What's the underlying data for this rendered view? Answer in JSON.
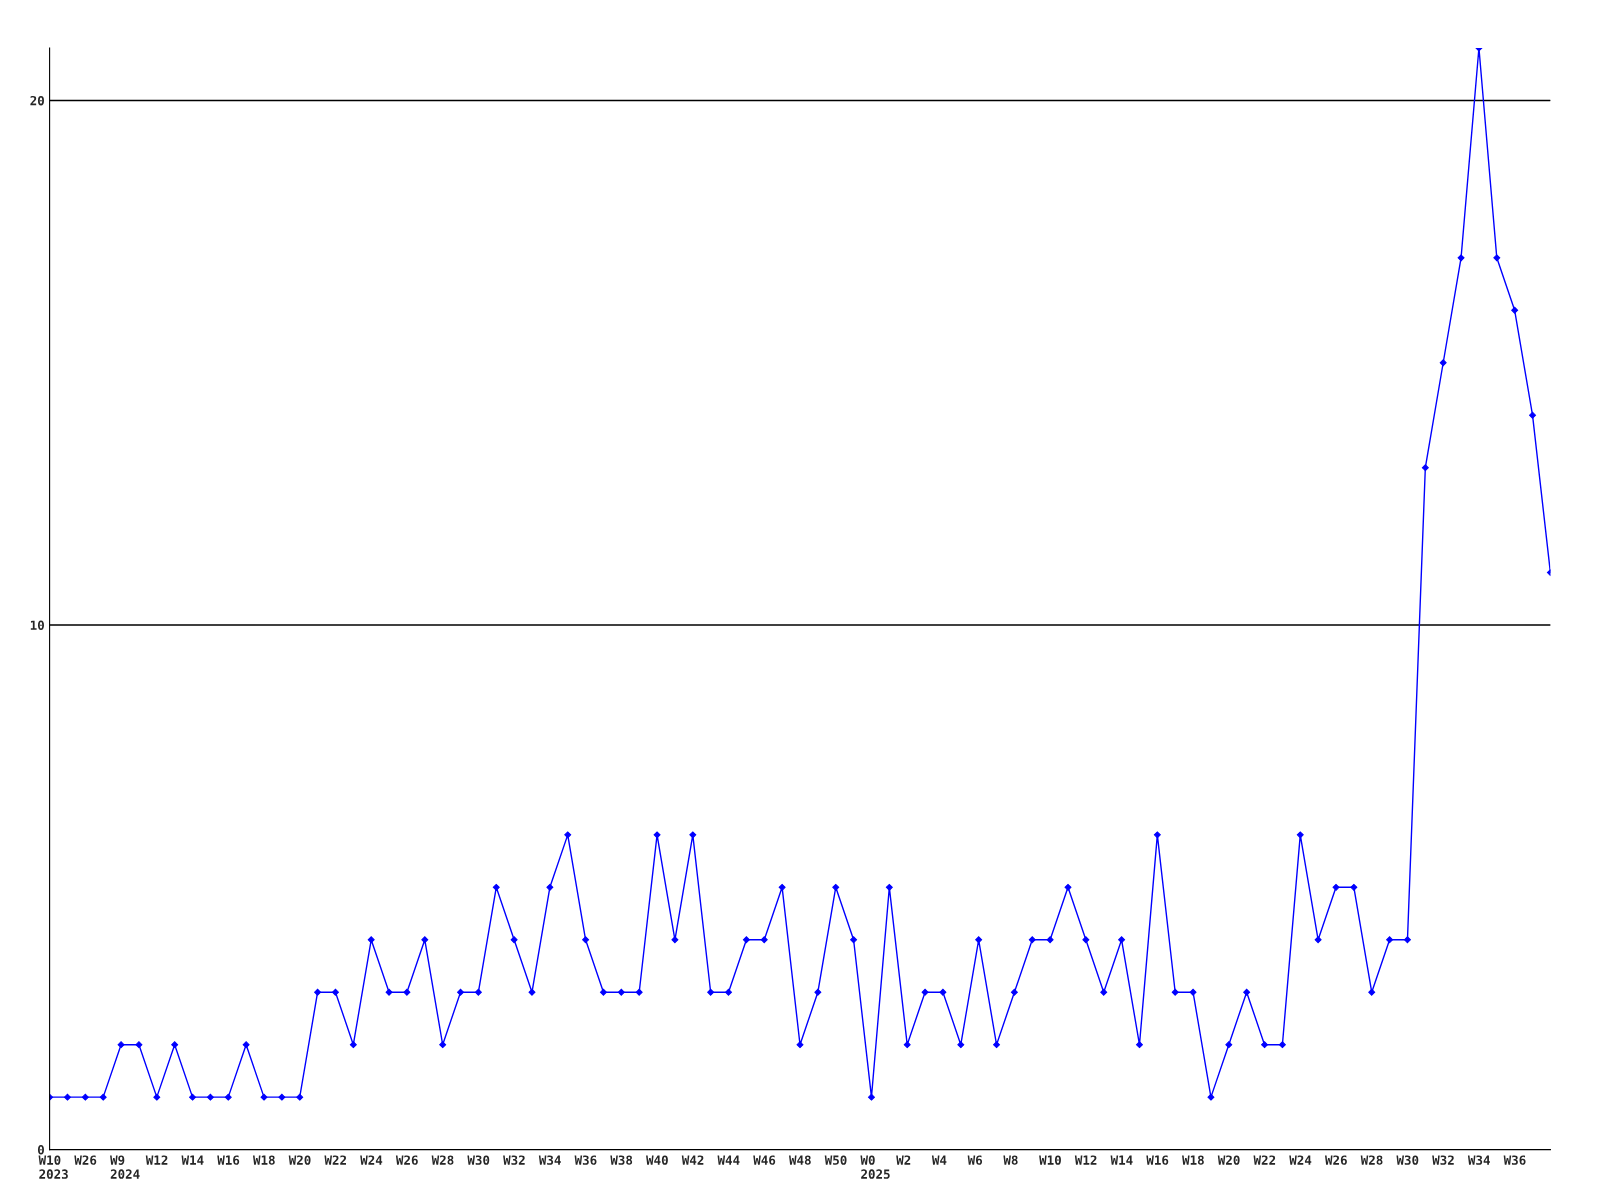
{
  "chart_data": {
    "type": "line",
    "categories": [
      "W10\n2023",
      null,
      "W26",
      null,
      "W9\n2024",
      null,
      "W12",
      null,
      "W14",
      null,
      "W16",
      null,
      "W18",
      null,
      "W20",
      null,
      "W22",
      null,
      "W24",
      null,
      "W26",
      null,
      "W28",
      null,
      "W30",
      null,
      "W32",
      null,
      "W34",
      null,
      "W36",
      null,
      "W38",
      null,
      "W40",
      null,
      "W42",
      null,
      "W44",
      null,
      "W46",
      null,
      "W48",
      null,
      "W50",
      null,
      "W0\n2025",
      null,
      "W2",
      null,
      "W4",
      null,
      "W6",
      null,
      "W8",
      null,
      "W10",
      null,
      "W12",
      null,
      "W14",
      null,
      "W16",
      null,
      "W18",
      null,
      "W20",
      null,
      "W22",
      null,
      "W24",
      null,
      "W26",
      null,
      "W28",
      null,
      "W30",
      null,
      "W32",
      null,
      "W34",
      null,
      "W36",
      null,
      null
    ],
    "series": [
      {
        "color": "#0000ff",
        "values": [
          1,
          1,
          1,
          1,
          2,
          2,
          1,
          2,
          1,
          1,
          1,
          2,
          1,
          1,
          1,
          3,
          3,
          2,
          4,
          3,
          3,
          4,
          2,
          3,
          3,
          5,
          4,
          3,
          5,
          6,
          4,
          3,
          3,
          3,
          6,
          4,
          6,
          3,
          3,
          4,
          4,
          5,
          2,
          3,
          5,
          4,
          1,
          5,
          2,
          3,
          3,
          2,
          4,
          2,
          3,
          4,
          4,
          5,
          4,
          3,
          4,
          2,
          6,
          3,
          3,
          1,
          2,
          3,
          2,
          2,
          6,
          4,
          5,
          5,
          3,
          4,
          4,
          13,
          15,
          17,
          21,
          17,
          16,
          14,
          11
        ]
      }
    ],
    "ylim": [
      0,
      21
    ],
    "yticks": [
      0,
      10,
      20
    ],
    "grid": "y",
    "marker": "diamond",
    "line_style": "solid"
  }
}
